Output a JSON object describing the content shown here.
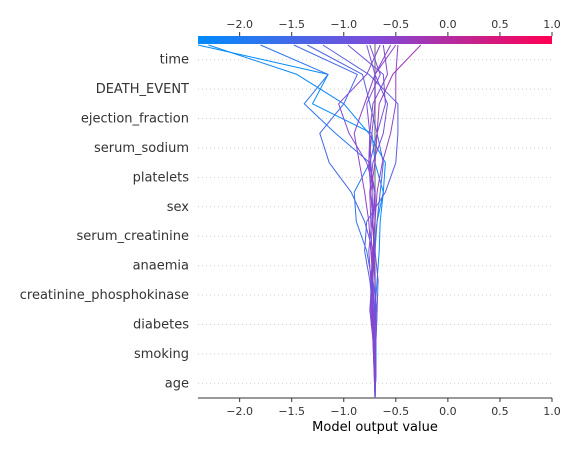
{
  "chart_data": {
    "type": "line",
    "subtype": "shap-decision-plot",
    "xlabel": "Model output value",
    "xlim": [
      -2.4,
      1.0
    ],
    "xticks": [
      -2.0,
      -1.5,
      -1.0,
      -0.5,
      0.0,
      0.5,
      1.0
    ],
    "xtick_labels": [
      "−2.0",
      "−1.5",
      "−1.0",
      "−0.5",
      "0.0",
      "0.5",
      "1.0"
    ],
    "base_value": -0.7,
    "features": [
      "time",
      "DEATH_EVENT",
      "ejection_fraction",
      "serum_sodium",
      "platelets",
      "sex",
      "serum_creatinine",
      "anaemia",
      "creatinine_phosphokinase",
      "diabetes",
      "smoking",
      "age"
    ],
    "colorbar": {
      "low_color": "#008bfb",
      "mid_color": "#7e4bd8",
      "high_color": "#ff0052",
      "range": [
        -2.4,
        1.0
      ]
    },
    "grid": "dotted-horizontal",
    "series": [
      {
        "values": [
          -0.7,
          -0.69,
          -0.7,
          -0.7,
          -0.68,
          -0.66,
          -0.65,
          -0.62,
          -0.6,
          -0.76,
          -1.0,
          -1.45,
          -2.3
        ]
      },
      {
        "values": [
          -0.7,
          -0.69,
          -0.69,
          -0.68,
          -0.72,
          -0.71,
          -0.68,
          -0.62,
          -0.7,
          -0.73,
          -1.3,
          -1.15,
          -2.4
        ]
      },
      {
        "values": [
          -0.7,
          -0.7,
          -0.7,
          -0.71,
          -0.73,
          -0.78,
          -0.88,
          -0.9,
          -0.75,
          -1.08,
          -1.38,
          -1.15,
          -1.8
        ]
      },
      {
        "values": [
          -0.7,
          -0.71,
          -0.72,
          -0.7,
          -0.7,
          -0.72,
          -0.8,
          -0.93,
          -1.14,
          -1.23,
          -1.0,
          -0.87,
          -1.48
        ]
      },
      {
        "values": [
          -0.7,
          -0.69,
          -0.7,
          -0.72,
          -0.75,
          -0.8,
          -0.78,
          -0.6,
          -0.5,
          -0.48,
          -0.48,
          -0.76,
          -1.2
        ]
      },
      {
        "values": [
          -0.7,
          -0.7,
          -0.72,
          -0.75,
          -0.73,
          -0.7,
          -0.72,
          -0.7,
          -0.75,
          -0.68,
          -0.6,
          -0.62,
          -0.96
        ]
      },
      {
        "values": [
          -0.7,
          -0.7,
          -0.71,
          -0.74,
          -0.74,
          -0.7,
          -0.68,
          -0.65,
          -0.62,
          -0.68,
          -0.75,
          -0.82,
          -1.35
        ]
      },
      {
        "values": [
          -0.7,
          -0.7,
          -0.69,
          -0.68,
          -0.67,
          -0.7,
          -0.73,
          -0.72,
          -0.74,
          -0.75,
          -0.78,
          -0.65,
          -0.75
        ]
      },
      {
        "values": [
          -0.7,
          -0.7,
          -0.7,
          -0.69,
          -0.7,
          -0.71,
          -0.72,
          -0.74,
          -0.76,
          -0.75,
          -0.72,
          -0.58,
          -0.62
        ]
      },
      {
        "values": [
          -0.7,
          -0.71,
          -0.72,
          -0.74,
          -0.73,
          -0.72,
          -0.7,
          -0.7,
          -0.76,
          -0.73,
          -0.7,
          -0.7,
          -0.55
        ]
      },
      {
        "values": [
          -0.7,
          -0.7,
          -0.71,
          -0.72,
          -0.74,
          -0.72,
          -0.7,
          -0.68,
          -0.63,
          -0.55,
          -0.5,
          -0.5,
          -0.48
        ]
      },
      {
        "values": [
          -0.7,
          -0.69,
          -0.71,
          -0.73,
          -0.72,
          -0.71,
          -0.72,
          -0.74,
          -0.7,
          -0.68,
          -0.66,
          -0.53,
          -0.26
        ]
      },
      {
        "values": [
          -0.7,
          -0.7,
          -0.7,
          -0.71,
          -0.72,
          -0.74,
          -0.76,
          -0.8,
          -0.85,
          -0.9,
          -0.8,
          -0.7,
          -0.5
        ]
      },
      {
        "values": [
          -0.7,
          -0.7,
          -0.71,
          -0.72,
          -0.74,
          -0.76,
          -0.73,
          -0.7,
          -0.78,
          -0.95,
          -1.05,
          -0.78,
          -0.65
        ]
      },
      {
        "values": [
          -0.7,
          -0.69,
          -0.7,
          -0.71,
          -0.72,
          -0.73,
          -0.74,
          -0.75,
          -0.72,
          -0.62,
          -0.58,
          -0.7,
          -0.78
        ]
      }
    ]
  }
}
